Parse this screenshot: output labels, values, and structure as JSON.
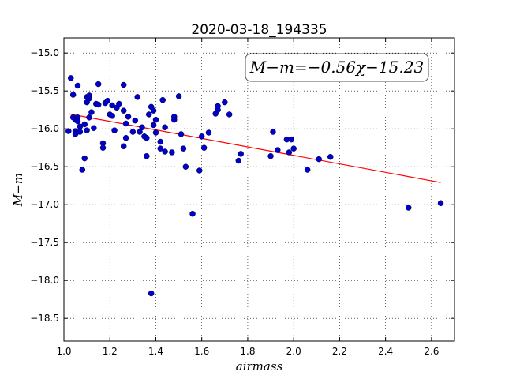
{
  "chart_data": {
    "type": "scatter",
    "title": "2020-03-18_194335",
    "xlabel": "airmass",
    "ylabel": "M−m",
    "xlim": [
      1.0,
      2.7
    ],
    "ylim": [
      -18.8,
      -14.8
    ],
    "y_inverted": true,
    "grid": true,
    "x_ticks": [
      1.0,
      1.2,
      1.4,
      1.6,
      1.8,
      2.0,
      2.2,
      2.4,
      2.6
    ],
    "x_tick_labels": [
      "1.0",
      "1.2",
      "1.4",
      "1.6",
      "1.8",
      "2.0",
      "2.2",
      "2.4",
      "2.6"
    ],
    "y_ticks": [
      -15.0,
      -15.5,
      -16.0,
      -16.5,
      -17.0,
      -17.5,
      -18.0,
      -18.5
    ],
    "y_tick_labels": [
      "−15.0",
      "−15.5",
      "−16.0",
      "−16.5",
      "−17.0",
      "−17.5",
      "−18.0",
      "−18.5"
    ],
    "annotation": "M−m=−0.56χ−15.23",
    "point_color": "#0000cc",
    "fit_color": "#ff0000",
    "fit": {
      "slope": -0.56,
      "intercept": -15.23,
      "x_range": [
        1.02,
        2.64
      ]
    },
    "points": [
      [
        1.02,
        -16.03
      ],
      [
        1.03,
        -15.33
      ],
      [
        1.04,
        -15.55
      ],
      [
        1.04,
        -15.85
      ],
      [
        1.05,
        -15.88
      ],
      [
        1.05,
        -16.03
      ],
      [
        1.05,
        -16.07
      ],
      [
        1.06,
        -15.43
      ],
      [
        1.06,
        -15.85
      ],
      [
        1.06,
        -15.9
      ],
      [
        1.07,
        -15.97
      ],
      [
        1.07,
        -16.04
      ],
      [
        1.08,
        -16.54
      ],
      [
        1.09,
        -16.39
      ],
      [
        1.09,
        -15.94
      ],
      [
        1.1,
        -15.58
      ],
      [
        1.1,
        -15.65
      ],
      [
        1.1,
        -16.02
      ],
      [
        1.11,
        -15.6
      ],
      [
        1.11,
        -15.56
      ],
      [
        1.11,
        -15.85
      ],
      [
        1.12,
        -15.78
      ],
      [
        1.13,
        -15.99
      ],
      [
        1.14,
        -15.67
      ],
      [
        1.15,
        -15.41
      ],
      [
        1.15,
        -15.68
      ],
      [
        1.17,
        -16.19
      ],
      [
        1.17,
        -16.25
      ],
      [
        1.18,
        -15.66
      ],
      [
        1.19,
        -15.63
      ],
      [
        1.2,
        -15.81
      ],
      [
        1.21,
        -15.83
      ],
      [
        1.21,
        -15.69
      ],
      [
        1.22,
        -16.02
      ],
      [
        1.23,
        -15.72
      ],
      [
        1.24,
        -15.67
      ],
      [
        1.26,
        -15.42
      ],
      [
        1.26,
        -15.76
      ],
      [
        1.26,
        -16.23
      ],
      [
        1.27,
        -15.93
      ],
      [
        1.27,
        -16.12
      ],
      [
        1.28,
        -15.84
      ],
      [
        1.3,
        -16.04
      ],
      [
        1.31,
        -15.89
      ],
      [
        1.32,
        -15.58
      ],
      [
        1.33,
        -16.04
      ],
      [
        1.34,
        -15.98
      ],
      [
        1.35,
        -16.1
      ],
      [
        1.36,
        -16.12
      ],
      [
        1.36,
        -16.36
      ],
      [
        1.37,
        -15.81
      ],
      [
        1.38,
        -15.71
      ],
      [
        1.38,
        -18.17
      ],
      [
        1.39,
        -15.76
      ],
      [
        1.39,
        -15.95
      ],
      [
        1.4,
        -16.05
      ],
      [
        1.4,
        -15.88
      ],
      [
        1.42,
        -16.17
      ],
      [
        1.42,
        -16.26
      ],
      [
        1.43,
        -15.62
      ],
      [
        1.44,
        -15.98
      ],
      [
        1.44,
        -16.3
      ],
      [
        1.47,
        -16.31
      ],
      [
        1.48,
        -15.88
      ],
      [
        1.48,
        -15.84
      ],
      [
        1.5,
        -15.57
      ],
      [
        1.51,
        -16.07
      ],
      [
        1.52,
        -16.26
      ],
      [
        1.53,
        -16.5
      ],
      [
        1.56,
        -17.12
      ],
      [
        1.59,
        -16.55
      ],
      [
        1.6,
        -16.1
      ],
      [
        1.61,
        -16.25
      ],
      [
        1.63,
        -16.05
      ],
      [
        1.66,
        -15.8
      ],
      [
        1.67,
        -15.7
      ],
      [
        1.67,
        -15.75
      ],
      [
        1.7,
        -15.65
      ],
      [
        1.72,
        -15.81
      ],
      [
        1.76,
        -16.42
      ],
      [
        1.77,
        -16.33
      ],
      [
        1.9,
        -16.36
      ],
      [
        1.91,
        -16.04
      ],
      [
        1.93,
        -16.28
      ],
      [
        1.97,
        -16.14
      ],
      [
        1.98,
        -16.31
      ],
      [
        1.99,
        -16.14
      ],
      [
        2.0,
        -16.26
      ],
      [
        2.06,
        -16.54
      ],
      [
        2.11,
        -16.4
      ],
      [
        2.16,
        -16.37
      ],
      [
        2.5,
        -17.04
      ],
      [
        2.64,
        -16.98
      ]
    ]
  }
}
